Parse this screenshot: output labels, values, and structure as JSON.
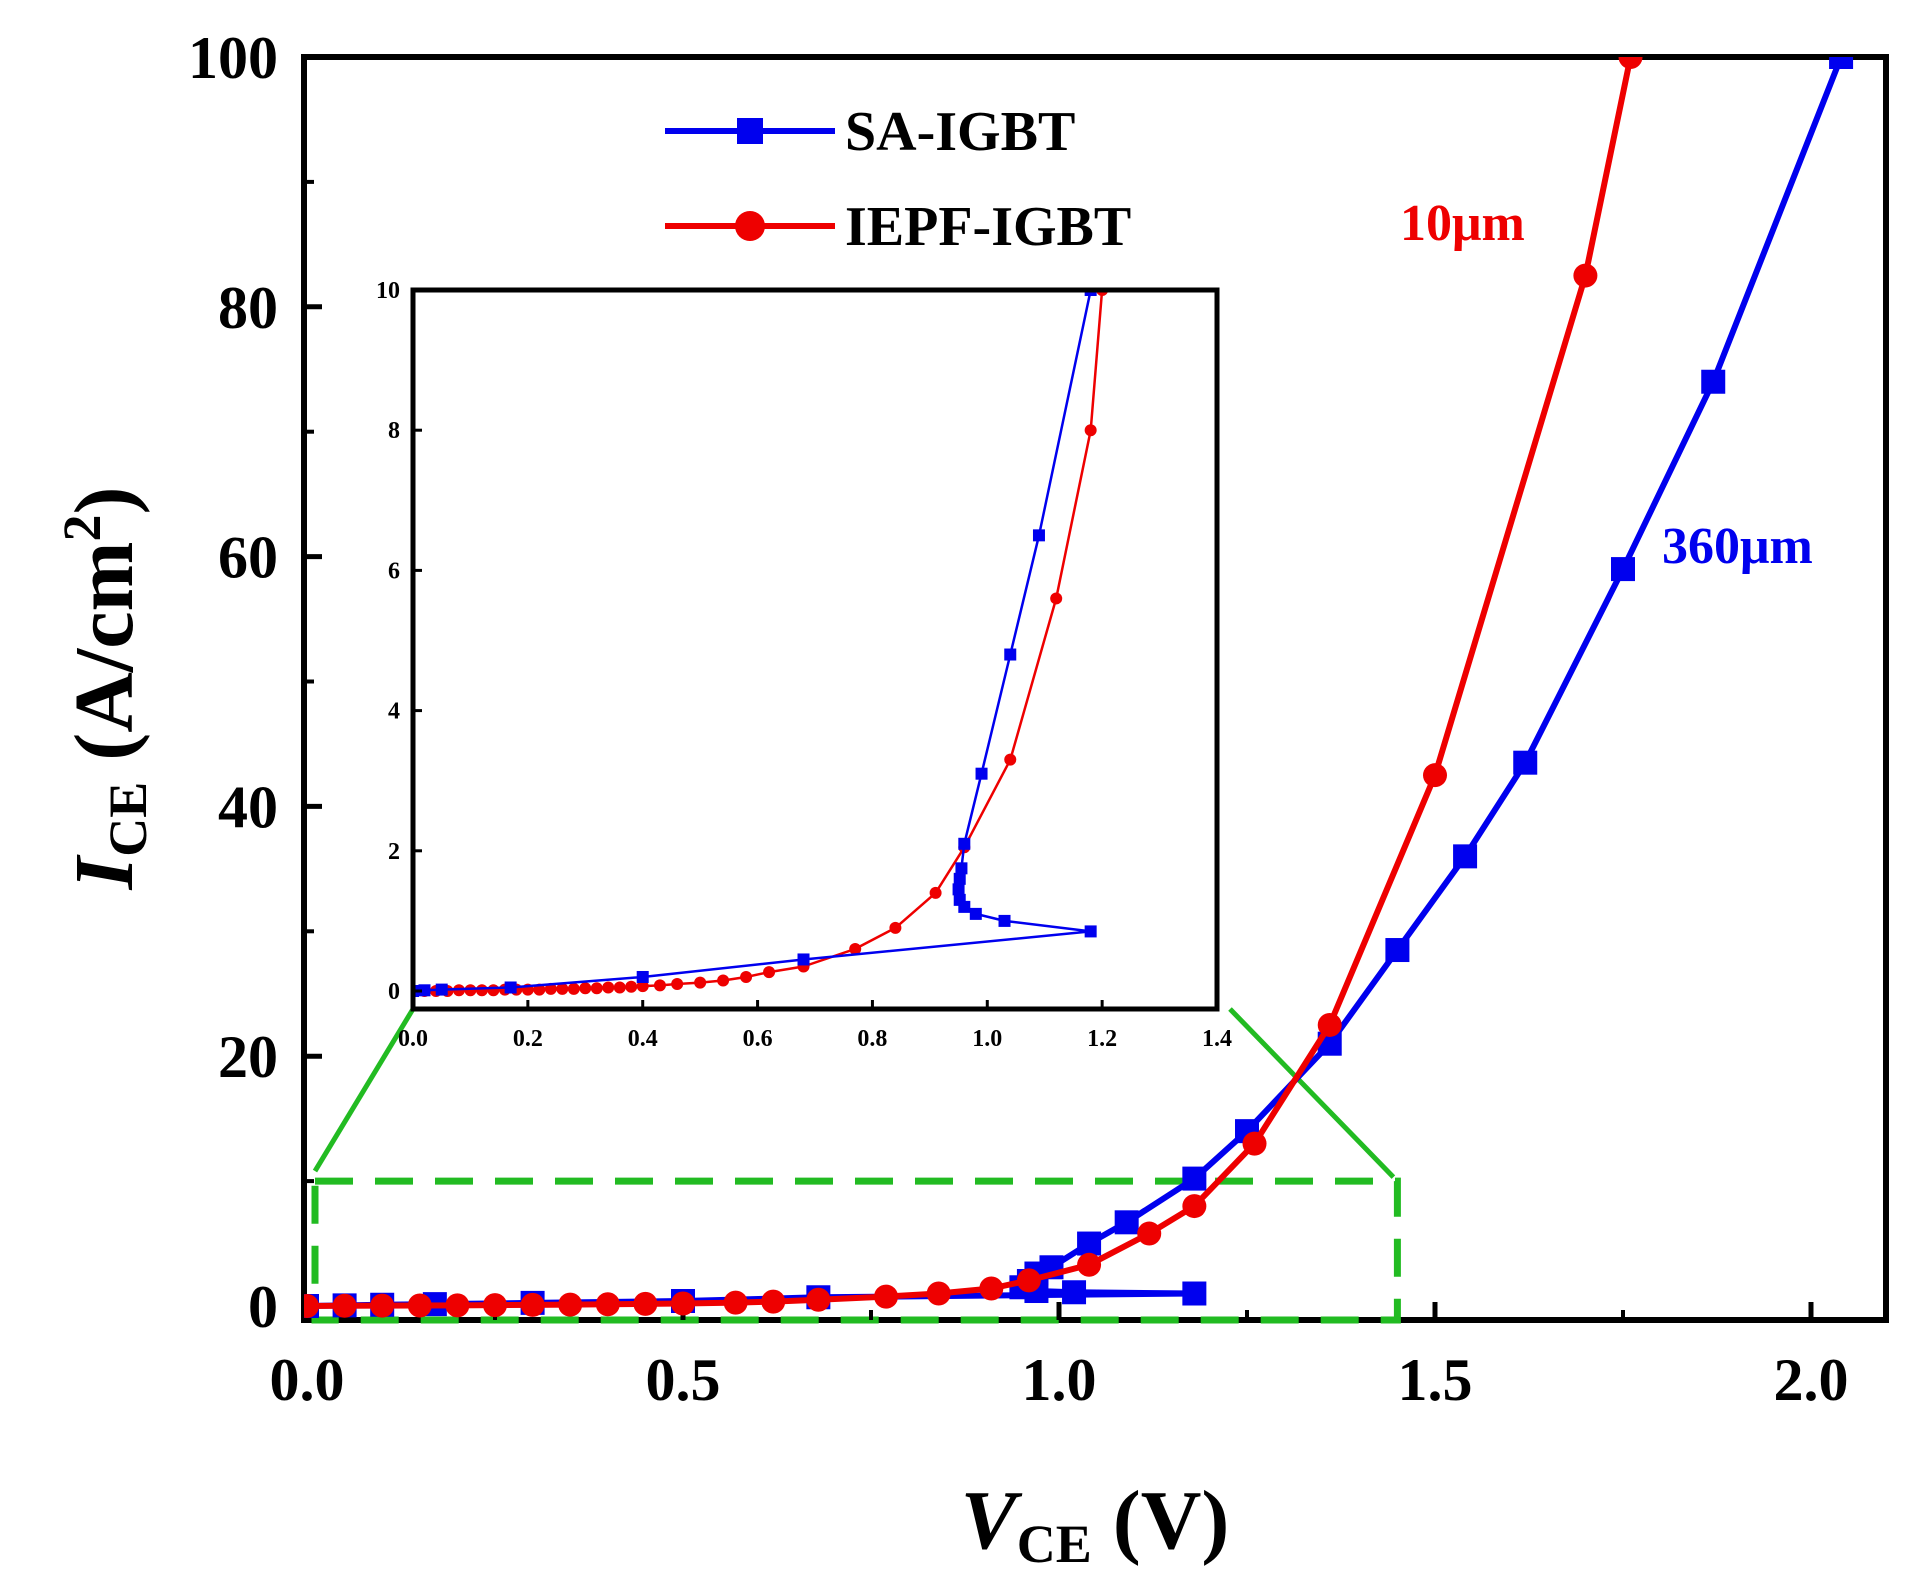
{
  "chart_data": {
    "type": "line",
    "xlabel": {
      "main": "V",
      "sub": "CE",
      "unit": " (V)"
    },
    "ylabel": {
      "main": "I",
      "sub": "CE",
      "unit_pre": " (A/cm",
      "unit_sup": "2",
      "unit_post": ")"
    },
    "xlim": [
      0,
      2.1
    ],
    "ylim": [
      -2,
      100
    ],
    "x_ticks": [
      "0.0",
      "0.5",
      "1.0",
      "1.5",
      "2.0"
    ],
    "y_ticks": [
      "0",
      "20",
      "40",
      "60",
      "80",
      "100"
    ],
    "legend": {
      "position": "top-center"
    },
    "series": [
      {
        "name": "SA-IGBT",
        "color": "#0000ee",
        "marker": "square",
        "points": [
          [
            0.0,
            0.0
          ],
          [
            0.05,
            0.05
          ],
          [
            0.1,
            0.1
          ],
          [
            0.17,
            0.15
          ],
          [
            0.3,
            0.25
          ],
          [
            0.5,
            0.4
          ],
          [
            0.68,
            0.7
          ],
          [
            1.18,
            1.0
          ],
          [
            1.02,
            1.1
          ],
          [
            0.97,
            1.2
          ],
          [
            0.95,
            1.5
          ],
          [
            0.96,
            2.0
          ],
          [
            0.97,
            2.6
          ],
          [
            0.99,
            3.1
          ],
          [
            1.04,
            5.0
          ],
          [
            1.09,
            6.7
          ],
          [
            1.18,
            10.2
          ],
          [
            1.25,
            14.0
          ],
          [
            1.36,
            21.0
          ],
          [
            1.45,
            28.5
          ],
          [
            1.54,
            36.0
          ],
          [
            1.62,
            43.5
          ],
          [
            1.75,
            59.0
          ],
          [
            1.87,
            74.0
          ],
          [
            2.04,
            100.0
          ]
        ]
      },
      {
        "name": "IEPF-IGBT",
        "color": "#ee0000",
        "marker": "circle",
        "points": [
          [
            0.0,
            0.0
          ],
          [
            0.05,
            0.02
          ],
          [
            0.1,
            0.03
          ],
          [
            0.15,
            0.04
          ],
          [
            0.2,
            0.05
          ],
          [
            0.25,
            0.07
          ],
          [
            0.3,
            0.09
          ],
          [
            0.35,
            0.11
          ],
          [
            0.4,
            0.14
          ],
          [
            0.45,
            0.17
          ],
          [
            0.5,
            0.2
          ],
          [
            0.57,
            0.27
          ],
          [
            0.62,
            0.35
          ],
          [
            0.68,
            0.5
          ],
          [
            0.77,
            0.75
          ],
          [
            0.84,
            1.0
          ],
          [
            0.91,
            1.4
          ],
          [
            0.96,
            2.05
          ],
          [
            1.04,
            3.3
          ],
          [
            1.12,
            5.8
          ],
          [
            1.18,
            8.0
          ],
          [
            1.26,
            13.0
          ],
          [
            1.36,
            22.5
          ],
          [
            1.5,
            42.5
          ],
          [
            1.7,
            82.5
          ],
          [
            1.76,
            100.0
          ]
        ]
      }
    ],
    "annotations": [
      {
        "text": "10μm",
        "color": "#ee0000",
        "near_series": "IEPF-IGBT"
      },
      {
        "text": "360μm",
        "color": "#0000ee",
        "near_series": "SA-IGBT"
      }
    ],
    "zoom_region": {
      "x": [
        0,
        1.45
      ],
      "y": [
        0,
        10
      ]
    },
    "inset": {
      "xlim": [
        0,
        1.4
      ],
      "ylim": [
        -0.3,
        10
      ],
      "x_ticks": [
        "0.0",
        "0.2",
        "0.4",
        "0.6",
        "0.8",
        "1.0",
        "1.2",
        "1.4"
      ],
      "y_ticks": [
        "0",
        "2",
        "4",
        "6",
        "8",
        "10"
      ],
      "series": [
        {
          "name": "SA-IGBT",
          "color": "#0000ee",
          "marker": "square",
          "points": [
            [
              0.0,
              0.0
            ],
            [
              0.02,
              0.01
            ],
            [
              0.05,
              0.02
            ],
            [
              0.17,
              0.05
            ],
            [
              0.4,
              0.2
            ],
            [
              0.68,
              0.45
            ],
            [
              1.18,
              0.85
            ],
            [
              1.03,
              1.0
            ],
            [
              0.98,
              1.1
            ],
            [
              0.96,
              1.2
            ],
            [
              0.952,
              1.3
            ],
            [
              0.95,
              1.45
            ],
            [
              0.952,
              1.6
            ],
            [
              0.955,
              1.75
            ],
            [
              0.96,
              2.1
            ],
            [
              0.99,
              3.1
            ],
            [
              1.04,
              4.8
            ],
            [
              1.09,
              6.5
            ],
            [
              1.18,
              10.0
            ]
          ]
        },
        {
          "name": "IEPF-IGBT",
          "color": "#ee0000",
          "marker": "circle",
          "points": [
            [
              0.0,
              0.0
            ],
            [
              0.02,
              0.0
            ],
            [
              0.04,
              0.0
            ],
            [
              0.06,
              0.0
            ],
            [
              0.08,
              0.01
            ],
            [
              0.1,
              0.01
            ],
            [
              0.12,
              0.01
            ],
            [
              0.14,
              0.01
            ],
            [
              0.16,
              0.02
            ],
            [
              0.18,
              0.02
            ],
            [
              0.2,
              0.02
            ],
            [
              0.22,
              0.02
            ],
            [
              0.24,
              0.03
            ],
            [
              0.26,
              0.03
            ],
            [
              0.28,
              0.03
            ],
            [
              0.3,
              0.04
            ],
            [
              0.32,
              0.04
            ],
            [
              0.34,
              0.05
            ],
            [
              0.36,
              0.05
            ],
            [
              0.38,
              0.06
            ],
            [
              0.4,
              0.07
            ],
            [
              0.43,
              0.08
            ],
            [
              0.46,
              0.1
            ],
            [
              0.5,
              0.12
            ],
            [
              0.54,
              0.15
            ],
            [
              0.58,
              0.2
            ],
            [
              0.62,
              0.27
            ],
            [
              0.68,
              0.35
            ],
            [
              0.77,
              0.6
            ],
            [
              0.84,
              0.9
            ],
            [
              0.91,
              1.4
            ],
            [
              0.96,
              2.05
            ],
            [
              1.04,
              3.3
            ],
            [
              1.12,
              5.6
            ],
            [
              1.18,
              8.0
            ],
            [
              1.2,
              10.0
            ]
          ]
        }
      ]
    }
  }
}
